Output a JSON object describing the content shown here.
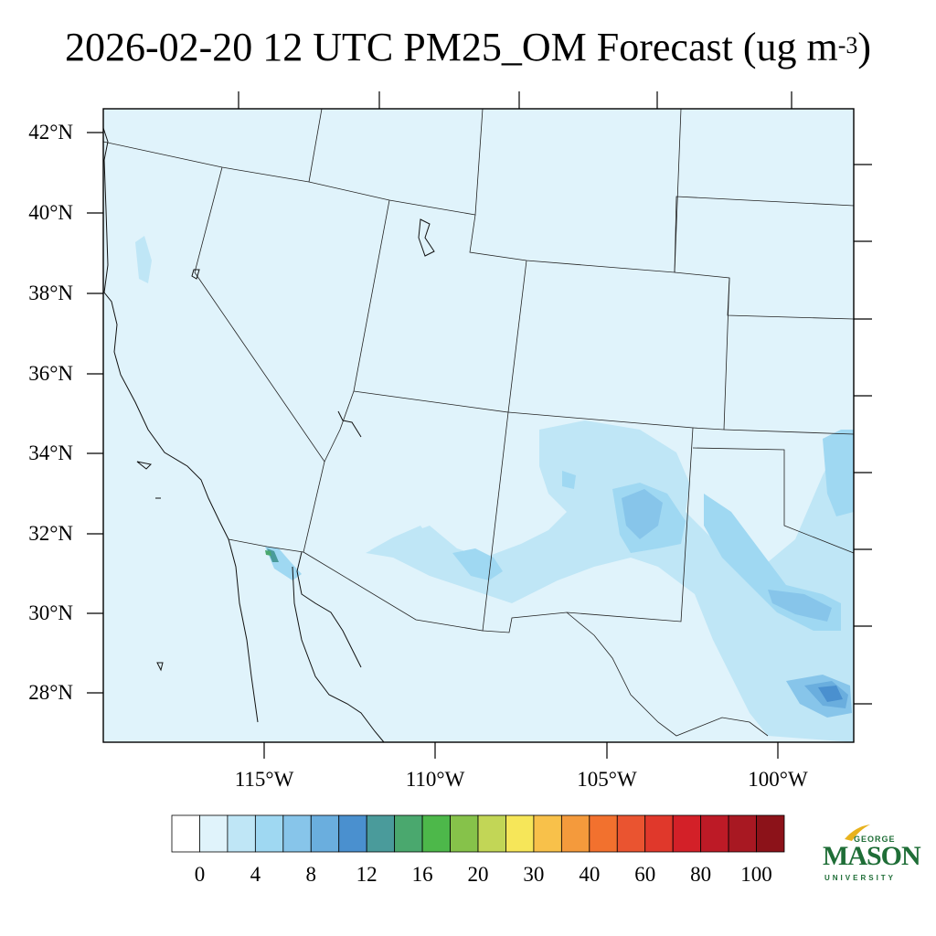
{
  "title": {
    "main": "2026-02-20 12 UTC PM25_OM Forecast (ug m",
    "exp": "-3",
    "close": ")"
  },
  "lat_labels": [
    "42°N",
    "40°N",
    "38°N",
    "36°N",
    "34°N",
    "32°N",
    "30°N",
    "28°N"
  ],
  "lon_labels": [
    "115°W",
    "110°W",
    "105°W",
    "100°W"
  ],
  "colorbar": {
    "labels": [
      "0",
      "4",
      "8",
      "12",
      "16",
      "20",
      "30",
      "40",
      "60",
      "80",
      "100"
    ],
    "colors": [
      "#ffffff",
      "#e0f3fb",
      "#bfe6f6",
      "#9fd8f2",
      "#87c5ea",
      "#6aaede",
      "#4a90cf",
      "#4a9b9b",
      "#4aa86e",
      "#4db84a",
      "#86c24a",
      "#c2d656",
      "#f6e659",
      "#f8c14a",
      "#f49a3c",
      "#f2712e",
      "#ea5430",
      "#e0382b",
      "#d32028",
      "#bd1a26",
      "#a81822",
      "#8c1219"
    ]
  },
  "logo": {
    "top": "GEORGE",
    "main": "MASON",
    "bottom": "UNIVERSITY",
    "color": "#1f6e37",
    "accent": "#e8b21c"
  }
}
